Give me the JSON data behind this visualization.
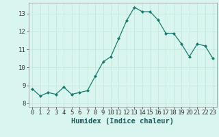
{
  "title": "",
  "xlabel": "Humidex (Indice chaleur)",
  "ylabel": "",
  "x_values": [
    0,
    1,
    2,
    3,
    4,
    5,
    6,
    7,
    8,
    9,
    10,
    11,
    12,
    13,
    14,
    15,
    16,
    17,
    18,
    19,
    20,
    21,
    22,
    23
  ],
  "y_values": [
    8.8,
    8.4,
    8.6,
    8.5,
    8.9,
    8.5,
    8.6,
    8.7,
    9.5,
    10.3,
    10.6,
    11.6,
    12.6,
    13.35,
    13.1,
    13.1,
    12.65,
    11.9,
    11.9,
    11.3,
    10.6,
    11.3,
    11.2,
    10.5
  ],
  "line_color": "#1a7a6e",
  "marker": "D",
  "marker_size": 2.0,
  "bg_color": "#d8f5f0",
  "grid_color": "#c8e8e0",
  "tick_label_fontsize": 6.5,
  "xlabel_fontsize": 7.5,
  "ylim": [
    7.8,
    13.6
  ],
  "xlim": [
    -0.5,
    23.5
  ],
  "yticks": [
    8,
    9,
    10,
    11,
    12,
    13
  ],
  "xticks": [
    0,
    1,
    2,
    3,
    4,
    5,
    6,
    7,
    8,
    9,
    10,
    11,
    12,
    13,
    14,
    15,
    16,
    17,
    18,
    19,
    20,
    21,
    22,
    23
  ],
  "spine_color": "#888888",
  "line_width": 0.9
}
